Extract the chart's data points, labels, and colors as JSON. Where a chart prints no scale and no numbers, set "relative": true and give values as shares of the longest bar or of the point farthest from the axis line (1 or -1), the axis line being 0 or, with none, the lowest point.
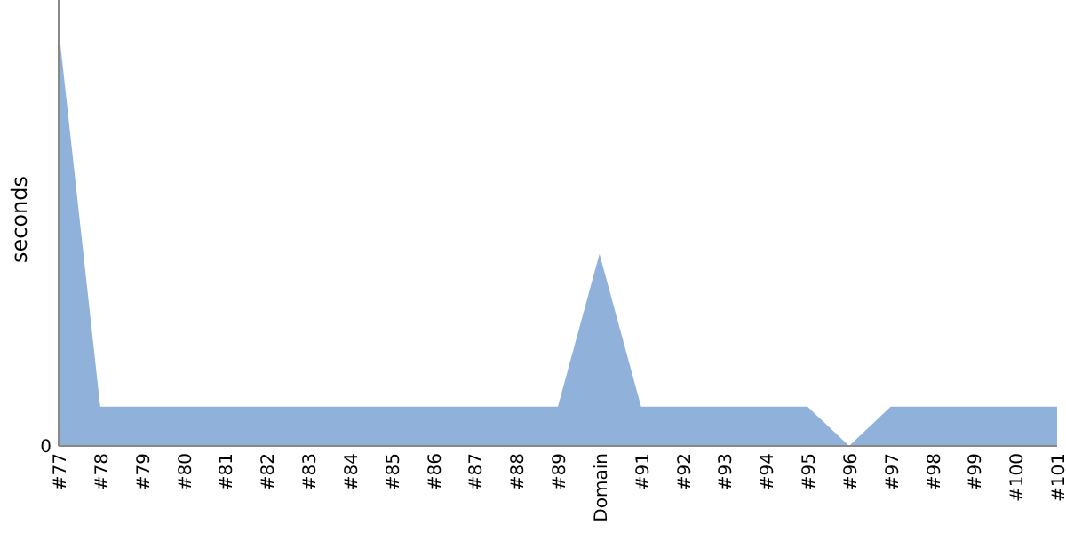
{
  "chart_data": {
    "type": "area",
    "ylabel": "seconds",
    "relative": true,
    "annotations": [
      "0"
    ],
    "categories": [
      "#77",
      "#78",
      "#79",
      "#80",
      "#81",
      "#82",
      "#83",
      "#84",
      "#85",
      "#86",
      "#87",
      "#88",
      "#89",
      "Domain",
      "#91",
      "#92",
      "#93",
      "#94",
      "#95",
      "#96",
      "#97",
      "#98",
      "#99",
      "#100",
      "#101"
    ],
    "series": [
      {
        "color": "#90b1da",
        "values": [
          1,
          0.094,
          0.094,
          0.094,
          0.094,
          0.094,
          0.094,
          0.094,
          0.094,
          0.094,
          0.094,
          0.094,
          0.094,
          0.46,
          0.094,
          0.094,
          0.094,
          0.094,
          0.094,
          0,
          0.094,
          0.094,
          0.094,
          0.094,
          0.094
        ]
      }
    ]
  }
}
